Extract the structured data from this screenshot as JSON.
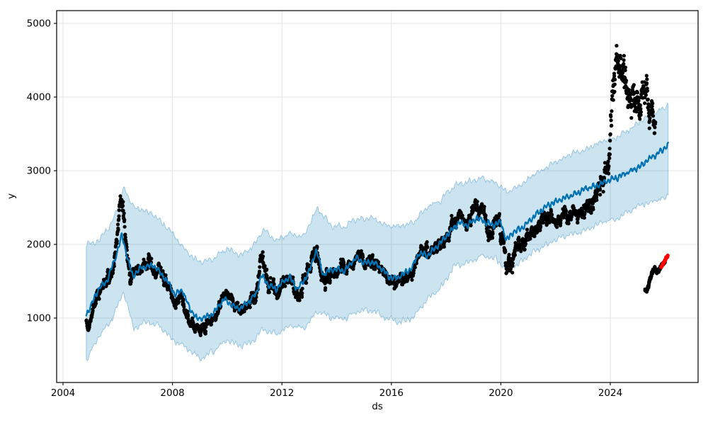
{
  "chart_data": {
    "type": "scatter",
    "subtype": "prophet-forecast-plot",
    "title": "",
    "xlabel": "ds",
    "ylabel": "y",
    "grid": true,
    "legend": "none",
    "xlim": [
      2003.767,
      2027.207
    ],
    "ylim": [
      125,
      5173
    ],
    "x_ticks": [
      {
        "value": 2004,
        "label": "2004"
      },
      {
        "value": 2008,
        "label": "2008"
      },
      {
        "value": 2012,
        "label": "2012"
      },
      {
        "value": 2016,
        "label": "2016"
      },
      {
        "value": 2020,
        "label": "2020"
      },
      {
        "value": 2024,
        "label": "2024"
      }
    ],
    "y_ticks": [
      {
        "value": 1000,
        "label": "1000"
      },
      {
        "value": 2000,
        "label": "2000"
      },
      {
        "value": 3000,
        "label": "3000"
      },
      {
        "value": 4000,
        "label": "4000"
      },
      {
        "value": 5000,
        "label": "5000"
      }
    ],
    "colors": {
      "points": "#000000",
      "new_points": "#ff0000",
      "forecast_line": "#0072b2",
      "band_fill": "rgba(0,114,178,0.2)",
      "band_edge": "rgba(0,114,178,0.32)",
      "grid": "#e3e3e3",
      "spine": "#000000",
      "tick": "#000000",
      "background": "#ffffff"
    },
    "observed": {
      "name": "historical observations (black dots, ~daily)",
      "x_range": [
        2004.85,
        2025.65
      ],
      "keyframes": [
        [
          2004.85,
          950
        ],
        [
          2004.95,
          890
        ],
        [
          2005.1,
          1150
        ],
        [
          2005.3,
          1350
        ],
        [
          2005.5,
          1450
        ],
        [
          2005.7,
          1550
        ],
        [
          2005.85,
          1750
        ],
        [
          2006.0,
          2150
        ],
        [
          2006.08,
          2600
        ],
        [
          2006.15,
          2560
        ],
        [
          2006.25,
          2250
        ],
        [
          2006.35,
          1850
        ],
        [
          2006.45,
          1560
        ],
        [
          2006.6,
          1620
        ],
        [
          2006.8,
          1650
        ],
        [
          2007.0,
          1720
        ],
        [
          2007.15,
          1800
        ],
        [
          2007.35,
          1600
        ],
        [
          2007.55,
          1680
        ],
        [
          2007.75,
          1500
        ],
        [
          2007.95,
          1350
        ],
        [
          2008.1,
          1150
        ],
        [
          2008.3,
          1300
        ],
        [
          2008.5,
          1050
        ],
        [
          2008.65,
          950
        ],
        [
          2008.8,
          870
        ],
        [
          2009.0,
          850
        ],
        [
          2009.2,
          900
        ],
        [
          2009.4,
          950
        ],
        [
          2009.6,
          1050
        ],
        [
          2009.85,
          1280
        ],
        [
          2010.05,
          1280
        ],
        [
          2010.25,
          1180
        ],
        [
          2010.45,
          1100
        ],
        [
          2010.65,
          1150
        ],
        [
          2010.85,
          1180
        ],
        [
          2011.05,
          1280
        ],
        [
          2011.2,
          1650
        ],
        [
          2011.3,
          1750
        ],
        [
          2011.45,
          1550
        ],
        [
          2011.65,
          1380
        ],
        [
          2011.85,
          1380
        ],
        [
          2012.05,
          1500
        ],
        [
          2012.25,
          1570
        ],
        [
          2012.45,
          1400
        ],
        [
          2012.6,
          1320
        ],
        [
          2012.8,
          1450
        ],
        [
          2013.0,
          1700
        ],
        [
          2013.2,
          1970
        ],
        [
          2013.35,
          1850
        ],
        [
          2013.5,
          1500
        ],
        [
          2013.7,
          1590
        ],
        [
          2013.9,
          1620
        ],
        [
          2014.1,
          1650
        ],
        [
          2014.35,
          1660
        ],
        [
          2014.7,
          1830
        ],
        [
          2014.9,
          1790
        ],
        [
          2015.2,
          1760
        ],
        [
          2015.5,
          1720
        ],
        [
          2015.7,
          1640
        ],
        [
          2015.9,
          1500
        ],
        [
          2016.1,
          1450
        ],
        [
          2016.3,
          1500
        ],
        [
          2016.55,
          1560
        ],
        [
          2016.8,
          1630
        ],
        [
          2017.0,
          1880
        ],
        [
          2017.2,
          1930
        ],
        [
          2017.4,
          1860
        ],
        [
          2017.6,
          1980
        ],
        [
          2017.85,
          2020
        ],
        [
          2018.05,
          2110
        ],
        [
          2018.25,
          2280
        ],
        [
          2018.5,
          2380
        ],
        [
          2018.7,
          2290
        ],
        [
          2018.95,
          2450
        ],
        [
          2019.15,
          2480
        ],
        [
          2019.35,
          2400
        ],
        [
          2019.55,
          2210
        ],
        [
          2019.75,
          2280
        ],
        [
          2019.95,
          2230
        ],
        [
          2020.1,
          2060
        ],
        [
          2020.18,
          1680
        ],
        [
          2020.3,
          1850
        ],
        [
          2020.5,
          1900
        ],
        [
          2020.7,
          1950
        ],
        [
          2020.9,
          2010
        ],
        [
          2021.1,
          2120
        ],
        [
          2021.3,
          2230
        ],
        [
          2021.5,
          2330
        ],
        [
          2021.7,
          2430
        ],
        [
          2021.9,
          2360
        ],
        [
          2022.1,
          2330
        ],
        [
          2022.3,
          2360
        ],
        [
          2022.5,
          2400
        ],
        [
          2022.7,
          2440
        ],
        [
          2022.9,
          2390
        ],
        [
          2023.1,
          2430
        ],
        [
          2023.3,
          2550
        ],
        [
          2023.5,
          2700
        ],
        [
          2023.7,
          2900
        ],
        [
          2023.95,
          3200
        ],
        [
          2024.05,
          3800
        ],
        [
          2024.2,
          4200
        ],
        [
          2024.35,
          4350
        ],
        [
          2024.5,
          4400
        ],
        [
          2024.65,
          4100
        ],
        [
          2024.8,
          3950
        ],
        [
          2024.95,
          3950
        ],
        [
          2025.1,
          4100
        ],
        [
          2025.25,
          4100
        ],
        [
          2025.4,
          3950
        ],
        [
          2025.55,
          3800
        ],
        [
          2025.65,
          3850
        ]
      ],
      "jitter": [
        [
          2004.85,
          38
        ],
        [
          2005.5,
          50
        ],
        [
          2006.05,
          95
        ],
        [
          2006.5,
          60
        ],
        [
          2007.5,
          55
        ],
        [
          2008.5,
          55
        ],
        [
          2009.5,
          48
        ],
        [
          2010.5,
          48
        ],
        [
          2011.25,
          80
        ],
        [
          2012.5,
          52
        ],
        [
          2013.2,
          75
        ],
        [
          2014.5,
          52
        ],
        [
          2015.5,
          50
        ],
        [
          2016.5,
          48
        ],
        [
          2017.5,
          52
        ],
        [
          2018.5,
          60
        ],
        [
          2019.3,
          70
        ],
        [
          2020.18,
          110
        ],
        [
          2021.0,
          55
        ],
        [
          2022.0,
          60
        ],
        [
          2023.0,
          65
        ],
        [
          2023.8,
          95
        ],
        [
          2024.1,
          200
        ],
        [
          2024.45,
          220
        ],
        [
          2024.8,
          170
        ],
        [
          2025.2,
          180
        ],
        [
          2025.65,
          150
        ]
      ]
    },
    "observed_recent_low": {
      "name": "detached recent low cluster (black dots)",
      "x_range": [
        2025.27,
        2026.0
      ],
      "keyframes": [
        [
          2025.27,
          1390
        ],
        [
          2025.33,
          1360
        ],
        [
          2025.4,
          1450
        ],
        [
          2025.48,
          1560
        ],
        [
          2025.56,
          1650
        ],
        [
          2025.63,
          1670
        ],
        [
          2025.7,
          1610
        ],
        [
          2025.76,
          1630
        ],
        [
          2025.83,
          1690
        ],
        [
          2025.9,
          1730
        ],
        [
          2026.0,
          1760
        ]
      ],
      "jitter_amp": 16
    },
    "new_points": {
      "name": "newest points (red dots)",
      "x_range": [
        2025.86,
        2026.1
      ],
      "keyframes": [
        [
          2025.86,
          1690
        ],
        [
          2025.94,
          1745
        ],
        [
          2026.0,
          1790
        ],
        [
          2026.05,
          1825
        ],
        [
          2026.1,
          1850
        ]
      ],
      "jitter_amp": 10
    },
    "forecast": {
      "name": "yhat forecast line",
      "x_range": [
        2004.85,
        2026.12
      ],
      "keyframes": [
        [
          2004.85,
          1050
        ],
        [
          2005.0,
          1150
        ],
        [
          2005.3,
          1400
        ],
        [
          2005.6,
          1500
        ],
        [
          2005.9,
          1800
        ],
        [
          2006.15,
          2120
        ],
        [
          2006.4,
          1750
        ],
        [
          2006.55,
          1560
        ],
        [
          2006.8,
          1680
        ],
        [
          2007.1,
          1700
        ],
        [
          2007.3,
          1720
        ],
        [
          2007.6,
          1600
        ],
        [
          2007.9,
          1450
        ],
        [
          2008.1,
          1310
        ],
        [
          2008.35,
          1390
        ],
        [
          2008.6,
          1150
        ],
        [
          2008.9,
          990
        ],
        [
          2009.2,
          1010
        ],
        [
          2009.5,
          1060
        ],
        [
          2009.9,
          1270
        ],
        [
          2010.2,
          1160
        ],
        [
          2010.5,
          1130
        ],
        [
          2010.8,
          1230
        ],
        [
          2011.05,
          1320
        ],
        [
          2011.25,
          1580
        ],
        [
          2011.5,
          1450
        ],
        [
          2011.8,
          1390
        ],
        [
          2012.05,
          1500
        ],
        [
          2012.3,
          1550
        ],
        [
          2012.55,
          1390
        ],
        [
          2012.8,
          1500
        ],
        [
          2013.05,
          1680
        ],
        [
          2013.25,
          1930
        ],
        [
          2013.5,
          1590
        ],
        [
          2013.75,
          1650
        ],
        [
          2014.0,
          1660
        ],
        [
          2014.3,
          1640
        ],
        [
          2014.7,
          1820
        ],
        [
          2015.0,
          1750
        ],
        [
          2015.3,
          1760
        ],
        [
          2015.6,
          1690
        ],
        [
          2015.9,
          1560
        ],
        [
          2016.15,
          1540
        ],
        [
          2016.45,
          1600
        ],
        [
          2016.75,
          1680
        ],
        [
          2017.0,
          1880
        ],
        [
          2017.3,
          1850
        ],
        [
          2017.6,
          1950
        ],
        [
          2017.9,
          2060
        ],
        [
          2018.2,
          2200
        ],
        [
          2018.5,
          2300
        ],
        [
          2018.8,
          2260
        ],
        [
          2019.1,
          2360
        ],
        [
          2019.4,
          2310
        ],
        [
          2019.7,
          2260
        ],
        [
          2020.0,
          2300
        ],
        [
          2020.2,
          2060
        ],
        [
          2020.45,
          2160
        ],
        [
          2020.7,
          2210
        ],
        [
          2021.0,
          2300
        ],
        [
          2021.3,
          2410
        ],
        [
          2021.6,
          2500
        ],
        [
          2021.9,
          2560
        ],
        [
          2022.2,
          2610
        ],
        [
          2022.5,
          2650
        ],
        [
          2022.8,
          2700
        ],
        [
          2023.1,
          2760
        ],
        [
          2023.5,
          2800
        ],
        [
          2023.9,
          2860
        ],
        [
          2024.2,
          2900
        ],
        [
          2024.5,
          2950
        ],
        [
          2024.8,
          3010
        ],
        [
          2025.1,
          3060
        ],
        [
          2025.4,
          3160
        ],
        [
          2025.7,
          3220
        ],
        [
          2026.0,
          3310
        ],
        [
          2026.12,
          3350
        ]
      ]
    },
    "band": {
      "name": "uncertainty interval (yhat_lower / yhat_upper)",
      "x_range": [
        2004.85,
        2026.12
      ],
      "upper": [
        [
          2004.85,
          2000
        ],
        [
          2005.3,
          2050
        ],
        [
          2005.8,
          2300
        ],
        [
          2006.2,
          2750
        ],
        [
          2006.6,
          2500
        ],
        [
          2007.0,
          2450
        ],
        [
          2007.5,
          2350
        ],
        [
          2008.0,
          2150
        ],
        [
          2008.5,
          1900
        ],
        [
          2009.0,
          1750
        ],
        [
          2009.5,
          1800
        ],
        [
          2010.0,
          1950
        ],
        [
          2010.5,
          1850
        ],
        [
          2011.0,
          2000
        ],
        [
          2011.3,
          2200
        ],
        [
          2011.8,
          2050
        ],
        [
          2012.3,
          2150
        ],
        [
          2012.8,
          2100
        ],
        [
          2013.3,
          2500
        ],
        [
          2013.8,
          2250
        ],
        [
          2014.3,
          2250
        ],
        [
          2014.8,
          2350
        ],
        [
          2015.3,
          2350
        ],
        [
          2015.8,
          2250
        ],
        [
          2016.3,
          2250
        ],
        [
          2016.8,
          2300
        ],
        [
          2017.3,
          2500
        ],
        [
          2017.8,
          2600
        ],
        [
          2018.3,
          2800
        ],
        [
          2018.8,
          2850
        ],
        [
          2019.3,
          2900
        ],
        [
          2019.8,
          2850
        ],
        [
          2020.2,
          2700
        ],
        [
          2020.7,
          2800
        ],
        [
          2021.2,
          2950
        ],
        [
          2021.7,
          3050
        ],
        [
          2022.2,
          3150
        ],
        [
          2022.7,
          3250
        ],
        [
          2023.2,
          3300
        ],
        [
          2023.7,
          3400
        ],
        [
          2024.2,
          3450
        ],
        [
          2024.7,
          3550
        ],
        [
          2025.2,
          3700
        ],
        [
          2025.7,
          3800
        ],
        [
          2026.12,
          3900
        ]
      ],
      "lower": [
        [
          2004.85,
          430
        ],
        [
          2005.3,
          750
        ],
        [
          2005.8,
          1000
        ],
        [
          2006.2,
          1350
        ],
        [
          2006.6,
          850
        ],
        [
          2007.0,
          950
        ],
        [
          2007.5,
          900
        ],
        [
          2008.0,
          700
        ],
        [
          2008.5,
          600
        ],
        [
          2009.0,
          450
        ],
        [
          2009.5,
          550
        ],
        [
          2010.0,
          700
        ],
        [
          2010.5,
          620
        ],
        [
          2011.0,
          700
        ],
        [
          2011.3,
          850
        ],
        [
          2011.8,
          780
        ],
        [
          2012.3,
          900
        ],
        [
          2012.8,
          850
        ],
        [
          2013.3,
          1100
        ],
        [
          2013.8,
          1000
        ],
        [
          2014.3,
          1000
        ],
        [
          2014.8,
          1100
        ],
        [
          2015.3,
          1100
        ],
        [
          2015.8,
          1000
        ],
        [
          2016.3,
          950
        ],
        [
          2016.8,
          1000
        ],
        [
          2017.3,
          1250
        ],
        [
          2017.8,
          1400
        ],
        [
          2018.3,
          1700
        ],
        [
          2018.8,
          1750
        ],
        [
          2019.3,
          1850
        ],
        [
          2019.8,
          1800
        ],
        [
          2020.2,
          1650
        ],
        [
          2020.7,
          1750
        ],
        [
          2021.2,
          1900
        ],
        [
          2021.7,
          2000
        ],
        [
          2022.2,
          2100
        ],
        [
          2022.7,
          2150
        ],
        [
          2023.2,
          2200
        ],
        [
          2023.7,
          2300
        ],
        [
          2024.2,
          2350
        ],
        [
          2024.7,
          2450
        ],
        [
          2025.2,
          2550
        ],
        [
          2025.7,
          2600
        ],
        [
          2026.12,
          2650
        ]
      ]
    }
  }
}
